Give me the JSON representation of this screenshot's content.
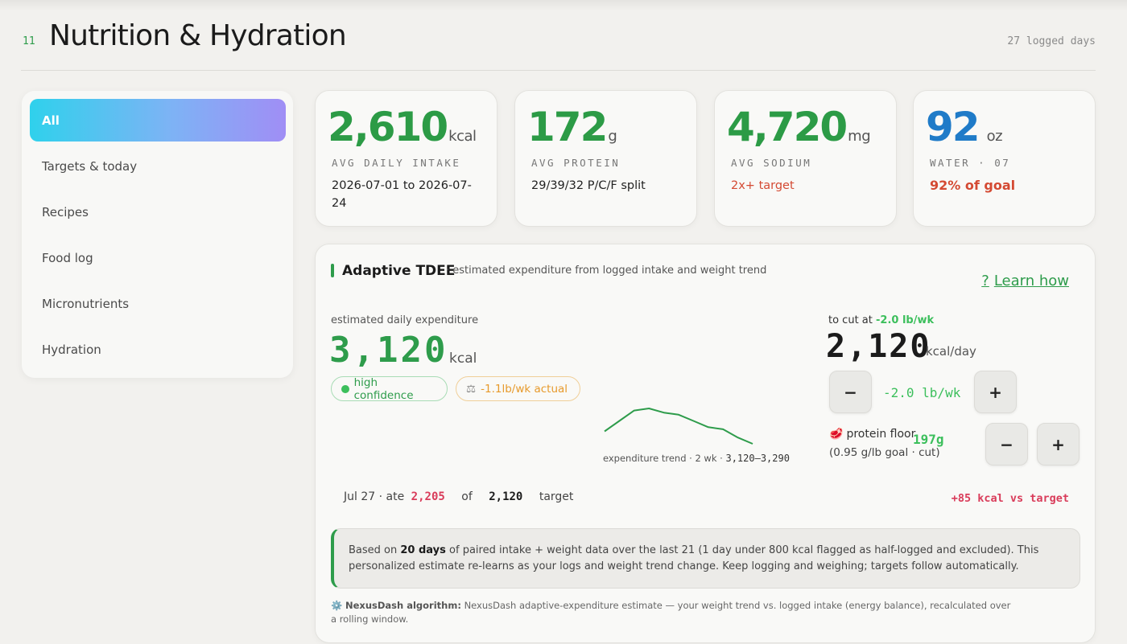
{
  "header": {
    "number": "11",
    "title": "Nutrition & Hydration",
    "logged_days": "27 logged days"
  },
  "sidebar": {
    "items": [
      {
        "label": "All",
        "active": true
      },
      {
        "label": "Targets & today"
      },
      {
        "label": "Recipes"
      },
      {
        "label": "Food log"
      },
      {
        "label": "Micronutrients"
      },
      {
        "label": "Hydration"
      }
    ]
  },
  "stats": {
    "intake": {
      "value": "2,610",
      "unit": "kcal",
      "label": "AVG DAILY INTAKE",
      "sub": "2026-07-01 to 2026-07-24"
    },
    "protein": {
      "value": "172",
      "unit": "g",
      "label": "AVG PROTEIN",
      "sub": "29/39/32 P/C/F split"
    },
    "sodium": {
      "value": "4,720",
      "unit": "mg",
      "label": "AVG SODIUM",
      "sub": "2x+ target"
    },
    "water": {
      "value": "92",
      "unit": "oz",
      "label": "WATER · 07",
      "sub": "92% of goal"
    }
  },
  "tdee": {
    "title": "Adaptive TDEE",
    "subtitle": "· estimated expenditure from logged intake and weight trend",
    "learn_q": "?",
    "learn_label": "Learn how",
    "est_label": "estimated daily expenditure",
    "est_value": "3,120",
    "est_unit": "kcal",
    "confidence": "high confidence",
    "actual_rate": "-1.1lb/wk actual",
    "trend_caption": "expenditure trend · 2 wk ·",
    "trend_range": "3,120–3,290",
    "trend_points": [
      3180,
      3230,
      3280,
      3290,
      3270,
      3260,
      3230,
      3200,
      3190,
      3150,
      3120
    ],
    "cut_label": "to cut at",
    "cut_rate": "-2.0 lb/wk",
    "cut_value": "2,120",
    "cut_unit": "kcal/day",
    "rate_value": "-2.0 lb/wk",
    "minus_label": "−",
    "plus_label": "+",
    "protein_floor_label": "protein floor",
    "protein_floor_value": "197g",
    "protein_floor_sub": "(0.95 g/lb goal · cut)",
    "ate_date": "Jul 27 · ate",
    "ate_value": "2,205",
    "ate_of": "of",
    "ate_target": "2,120",
    "ate_target_label": "target",
    "vs_target": "+85 kcal vs target",
    "note_pre": "Based on",
    "note_bold": "20 days",
    "note_post": "of paired intake + weight data over the last 21 (1 day under 800 kcal flagged as half-logged and excluded). This personalized estimate re-learns as your logs and weight trend change. Keep logging and weighing; targets follow automatically.",
    "algo_bold": "NexusDash algorithm:",
    "algo_text": "NexusDash adaptive-expenditure estimate — your weight trend vs. logged intake (energy balance), recalculated over a rolling window."
  },
  "colors": {
    "accent_green": "#2e9c4b",
    "water_blue": "#1f7bc8",
    "warning_red": "#d44a33",
    "sidebar_gradient_start": "#2fd1ec",
    "sidebar_gradient_end": "#a08ef5"
  }
}
